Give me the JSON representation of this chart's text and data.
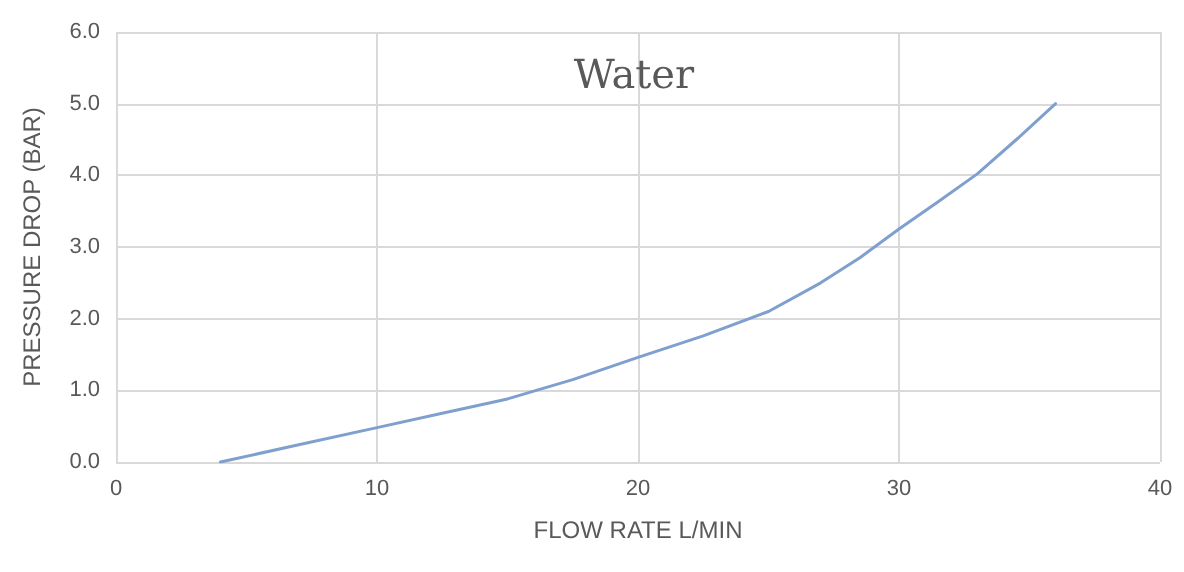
{
  "chart_data": {
    "type": "line",
    "title": "Water",
    "xlabel": "FLOW RATE L/MIN",
    "ylabel": "PRESSURE DROP (BAR)",
    "x": [
      4,
      7,
      10,
      12.5,
      15,
      17.5,
      20,
      22.5,
      25,
      27,
      28.5,
      30,
      31.5,
      33,
      34.5,
      36
    ],
    "series": [
      {
        "color": "#7f9fcf",
        "values": [
          0,
          0.24,
          0.48,
          0.68,
          0.88,
          1.15,
          1.46,
          1.76,
          2.1,
          2.5,
          2.85,
          3.25,
          3.63,
          4.02,
          4.5,
          5.0
        ]
      }
    ],
    "xlim": [
      0,
      40
    ],
    "xticks": [
      0,
      10,
      20,
      30,
      40
    ],
    "ylim": [
      0,
      6
    ],
    "yticks": [
      {
        "value": 0,
        "label": "0.0"
      },
      {
        "value": 1,
        "label": "1.0"
      },
      {
        "value": 2,
        "label": "2.0"
      },
      {
        "value": 3,
        "label": "3.0"
      },
      {
        "value": 4,
        "label": "4.0"
      },
      {
        "value": 5,
        "label": "5.0"
      },
      {
        "value": 6,
        "label": "6.0"
      }
    ],
    "grid": true,
    "marker": "none",
    "line_style": "solid"
  }
}
